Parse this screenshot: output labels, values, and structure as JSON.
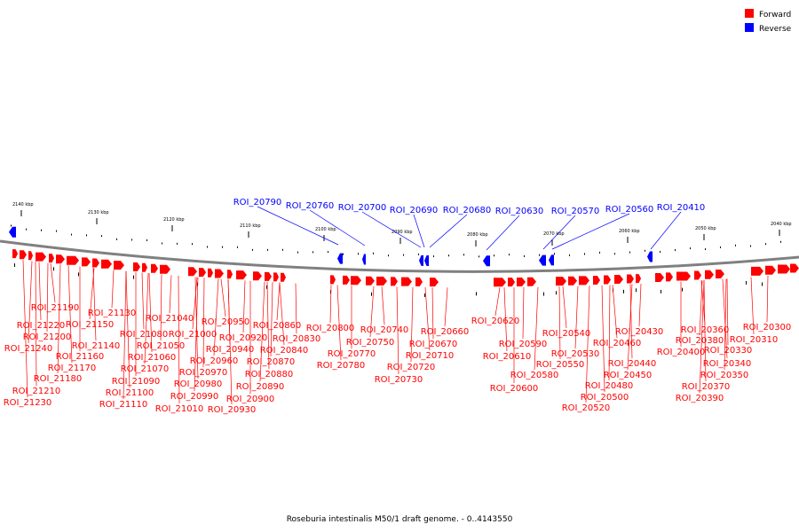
{
  "caption": "Roseburia intestinalis M50/1 draft genome. - 0..4143550",
  "legend": [
    {
      "label": "Forward",
      "color": "#ff0000"
    },
    {
      "label": "Reverse",
      "color": "#0000ff"
    }
  ],
  "colors": {
    "forward": "#ff0000",
    "reverse": "#0000ff",
    "backbone": "#808080"
  },
  "axis": {
    "ticks": [
      "2140 kbp",
      "2130 kbp",
      "2120 kbp",
      "2110 kbp",
      "2100 kbp",
      "2090 kbp",
      "2080 kbp",
      "2070 kbp",
      "2060 kbp",
      "2050 kbp",
      "2040 kbp"
    ]
  },
  "reverse_labels": [
    "ROI_20790",
    "ROI_20760",
    "ROI_20700",
    "ROI_20690",
    "ROI_20680",
    "ROI_20630",
    "ROI_20570",
    "ROI_20560",
    "ROI_20410"
  ],
  "forward_labels": [
    "ROI_21190",
    "ROI_21130",
    "ROI_21220",
    "ROI_21150",
    "ROI_21200",
    "ROI_21140",
    "ROI_21240",
    "ROI_21160",
    "ROI_21170",
    "ROI_21180",
    "ROI_21210",
    "ROI_21230",
    "ROI_21040",
    "ROI_21080",
    "ROI_21000",
    "ROI_21050",
    "ROI_21060",
    "ROI_21070",
    "ROI_21090",
    "ROI_21100",
    "ROI_21110",
    "ROI_21010",
    "ROI_20950",
    "ROI_20920",
    "ROI_20940",
    "ROI_20960",
    "ROI_20970",
    "ROI_20980",
    "ROI_20990",
    "ROI_20900",
    "ROI_20930",
    "ROI_20860",
    "ROI_20830",
    "ROI_20840",
    "ROI_20870",
    "ROI_20880",
    "ROI_20890",
    "ROI_20800",
    "ROI_20740",
    "ROI_20750",
    "ROI_20770",
    "ROI_20780",
    "ROI_20660",
    "ROI_20670",
    "ROI_20710",
    "ROI_20720",
    "ROI_20730",
    "ROI_20620",
    "ROI_20590",
    "ROI_20610",
    "ROI_20580",
    "ROI_20600",
    "ROI_20540",
    "ROI_20530",
    "ROI_20550",
    "ROI_20460",
    "ROI_20430",
    "ROI_20440",
    "ROI_20450",
    "ROI_20480",
    "ROI_20500",
    "ROI_20520",
    "ROI_20400",
    "ROI_20360",
    "ROI_20380",
    "ROI_20330",
    "ROI_20340",
    "ROI_20350",
    "ROI_20370",
    "ROI_20390",
    "ROI_20300",
    "ROI_20310"
  ]
}
